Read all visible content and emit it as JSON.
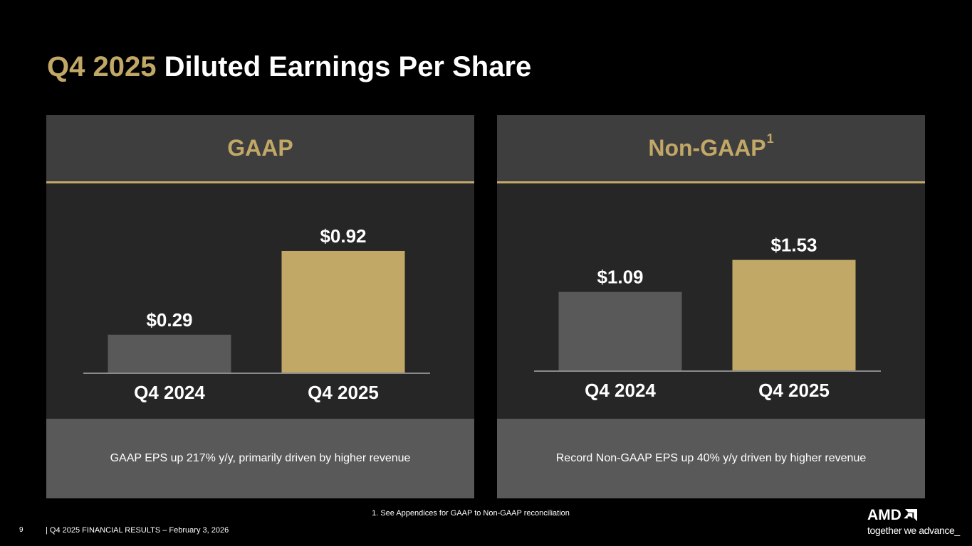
{
  "title": {
    "accent": "Q4 2025",
    "rest": " Diluted Earnings Per Share"
  },
  "colors": {
    "accent": "#c2a867",
    "prior_bar": "#595959",
    "current_bar": "#c2a867",
    "axis": "#8a8a8a"
  },
  "panels": {
    "gaap": {
      "heading": "GAAP",
      "caption": "GAAP EPS up 217% y/y, primarily driven by higher revenue"
    },
    "non_gaap": {
      "heading": "Non-GAAP",
      "footnote_marker": "1",
      "caption": "Record Non-GAAP EPS up 40% y/y driven by higher revenue"
    }
  },
  "chart_data": [
    {
      "type": "bar",
      "title": "GAAP",
      "categories": [
        "Q4 2024",
        "Q4 2025"
      ],
      "values": [
        0.29,
        0.92
      ],
      "value_labels": [
        "$0.29",
        "$0.92"
      ],
      "ylim": [
        0,
        1.0
      ],
      "xlabel": "",
      "ylabel": "",
      "grid": false
    },
    {
      "type": "bar",
      "title": "Non-GAAP",
      "categories": [
        "Q4 2024",
        "Q4 2025"
      ],
      "values": [
        1.09,
        1.53
      ],
      "value_labels": [
        "$1.09",
        "$1.53"
      ],
      "ylim": [
        0,
        1.8
      ],
      "xlabel": "",
      "ylabel": "",
      "grid": false
    }
  ],
  "footnote": "1. See Appendices for GAAP to Non-GAAP reconciliation",
  "footer": {
    "page_number": "9",
    "text": "|  Q4 2025 FINANCIAL RESULTS – February 3, 2026"
  },
  "logo": {
    "wordmark": "AMD",
    "tagline": "together we advance_"
  }
}
